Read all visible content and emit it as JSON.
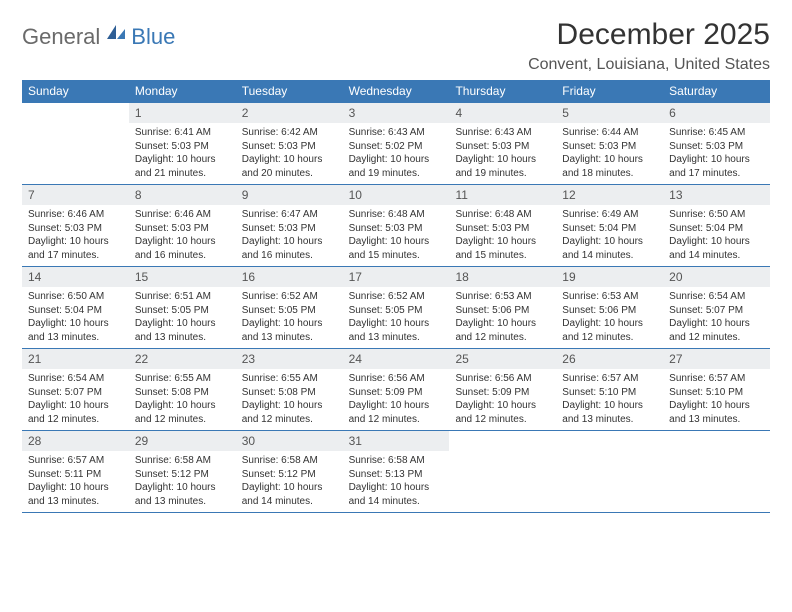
{
  "brand": {
    "part1": "General",
    "part2": "Blue"
  },
  "title": "December 2025",
  "location": "Convent, Louisiana, United States",
  "colors": {
    "header_bg": "#3a78b5",
    "daynum_bg": "#eceef0",
    "text": "#333333",
    "muted": "#555555",
    "divider": "#3a78b5"
  },
  "weekdays": [
    "Sunday",
    "Monday",
    "Tuesday",
    "Wednesday",
    "Thursday",
    "Friday",
    "Saturday"
  ],
  "weeks": [
    [
      null,
      {
        "n": "1",
        "sr": "Sunrise: 6:41 AM",
        "ss": "Sunset: 5:03 PM",
        "d1": "Daylight: 10 hours",
        "d2": "and 21 minutes."
      },
      {
        "n": "2",
        "sr": "Sunrise: 6:42 AM",
        "ss": "Sunset: 5:03 PM",
        "d1": "Daylight: 10 hours",
        "d2": "and 20 minutes."
      },
      {
        "n": "3",
        "sr": "Sunrise: 6:43 AM",
        "ss": "Sunset: 5:02 PM",
        "d1": "Daylight: 10 hours",
        "d2": "and 19 minutes."
      },
      {
        "n": "4",
        "sr": "Sunrise: 6:43 AM",
        "ss": "Sunset: 5:03 PM",
        "d1": "Daylight: 10 hours",
        "d2": "and 19 minutes."
      },
      {
        "n": "5",
        "sr": "Sunrise: 6:44 AM",
        "ss": "Sunset: 5:03 PM",
        "d1": "Daylight: 10 hours",
        "d2": "and 18 minutes."
      },
      {
        "n": "6",
        "sr": "Sunrise: 6:45 AM",
        "ss": "Sunset: 5:03 PM",
        "d1": "Daylight: 10 hours",
        "d2": "and 17 minutes."
      }
    ],
    [
      {
        "n": "7",
        "sr": "Sunrise: 6:46 AM",
        "ss": "Sunset: 5:03 PM",
        "d1": "Daylight: 10 hours",
        "d2": "and 17 minutes."
      },
      {
        "n": "8",
        "sr": "Sunrise: 6:46 AM",
        "ss": "Sunset: 5:03 PM",
        "d1": "Daylight: 10 hours",
        "d2": "and 16 minutes."
      },
      {
        "n": "9",
        "sr": "Sunrise: 6:47 AM",
        "ss": "Sunset: 5:03 PM",
        "d1": "Daylight: 10 hours",
        "d2": "and 16 minutes."
      },
      {
        "n": "10",
        "sr": "Sunrise: 6:48 AM",
        "ss": "Sunset: 5:03 PM",
        "d1": "Daylight: 10 hours",
        "d2": "and 15 minutes."
      },
      {
        "n": "11",
        "sr": "Sunrise: 6:48 AM",
        "ss": "Sunset: 5:03 PM",
        "d1": "Daylight: 10 hours",
        "d2": "and 15 minutes."
      },
      {
        "n": "12",
        "sr": "Sunrise: 6:49 AM",
        "ss": "Sunset: 5:04 PM",
        "d1": "Daylight: 10 hours",
        "d2": "and 14 minutes."
      },
      {
        "n": "13",
        "sr": "Sunrise: 6:50 AM",
        "ss": "Sunset: 5:04 PM",
        "d1": "Daylight: 10 hours",
        "d2": "and 14 minutes."
      }
    ],
    [
      {
        "n": "14",
        "sr": "Sunrise: 6:50 AM",
        "ss": "Sunset: 5:04 PM",
        "d1": "Daylight: 10 hours",
        "d2": "and 13 minutes."
      },
      {
        "n": "15",
        "sr": "Sunrise: 6:51 AM",
        "ss": "Sunset: 5:05 PM",
        "d1": "Daylight: 10 hours",
        "d2": "and 13 minutes."
      },
      {
        "n": "16",
        "sr": "Sunrise: 6:52 AM",
        "ss": "Sunset: 5:05 PM",
        "d1": "Daylight: 10 hours",
        "d2": "and 13 minutes."
      },
      {
        "n": "17",
        "sr": "Sunrise: 6:52 AM",
        "ss": "Sunset: 5:05 PM",
        "d1": "Daylight: 10 hours",
        "d2": "and 13 minutes."
      },
      {
        "n": "18",
        "sr": "Sunrise: 6:53 AM",
        "ss": "Sunset: 5:06 PM",
        "d1": "Daylight: 10 hours",
        "d2": "and 12 minutes."
      },
      {
        "n": "19",
        "sr": "Sunrise: 6:53 AM",
        "ss": "Sunset: 5:06 PM",
        "d1": "Daylight: 10 hours",
        "d2": "and 12 minutes."
      },
      {
        "n": "20",
        "sr": "Sunrise: 6:54 AM",
        "ss": "Sunset: 5:07 PM",
        "d1": "Daylight: 10 hours",
        "d2": "and 12 minutes."
      }
    ],
    [
      {
        "n": "21",
        "sr": "Sunrise: 6:54 AM",
        "ss": "Sunset: 5:07 PM",
        "d1": "Daylight: 10 hours",
        "d2": "and 12 minutes."
      },
      {
        "n": "22",
        "sr": "Sunrise: 6:55 AM",
        "ss": "Sunset: 5:08 PM",
        "d1": "Daylight: 10 hours",
        "d2": "and 12 minutes."
      },
      {
        "n": "23",
        "sr": "Sunrise: 6:55 AM",
        "ss": "Sunset: 5:08 PM",
        "d1": "Daylight: 10 hours",
        "d2": "and 12 minutes."
      },
      {
        "n": "24",
        "sr": "Sunrise: 6:56 AM",
        "ss": "Sunset: 5:09 PM",
        "d1": "Daylight: 10 hours",
        "d2": "and 12 minutes."
      },
      {
        "n": "25",
        "sr": "Sunrise: 6:56 AM",
        "ss": "Sunset: 5:09 PM",
        "d1": "Daylight: 10 hours",
        "d2": "and 12 minutes."
      },
      {
        "n": "26",
        "sr": "Sunrise: 6:57 AM",
        "ss": "Sunset: 5:10 PM",
        "d1": "Daylight: 10 hours",
        "d2": "and 13 minutes."
      },
      {
        "n": "27",
        "sr": "Sunrise: 6:57 AM",
        "ss": "Sunset: 5:10 PM",
        "d1": "Daylight: 10 hours",
        "d2": "and 13 minutes."
      }
    ],
    [
      {
        "n": "28",
        "sr": "Sunrise: 6:57 AM",
        "ss": "Sunset: 5:11 PM",
        "d1": "Daylight: 10 hours",
        "d2": "and 13 minutes."
      },
      {
        "n": "29",
        "sr": "Sunrise: 6:58 AM",
        "ss": "Sunset: 5:12 PM",
        "d1": "Daylight: 10 hours",
        "d2": "and 13 minutes."
      },
      {
        "n": "30",
        "sr": "Sunrise: 6:58 AM",
        "ss": "Sunset: 5:12 PM",
        "d1": "Daylight: 10 hours",
        "d2": "and 14 minutes."
      },
      {
        "n": "31",
        "sr": "Sunrise: 6:58 AM",
        "ss": "Sunset: 5:13 PM",
        "d1": "Daylight: 10 hours",
        "d2": "and 14 minutes."
      },
      null,
      null,
      null
    ]
  ]
}
